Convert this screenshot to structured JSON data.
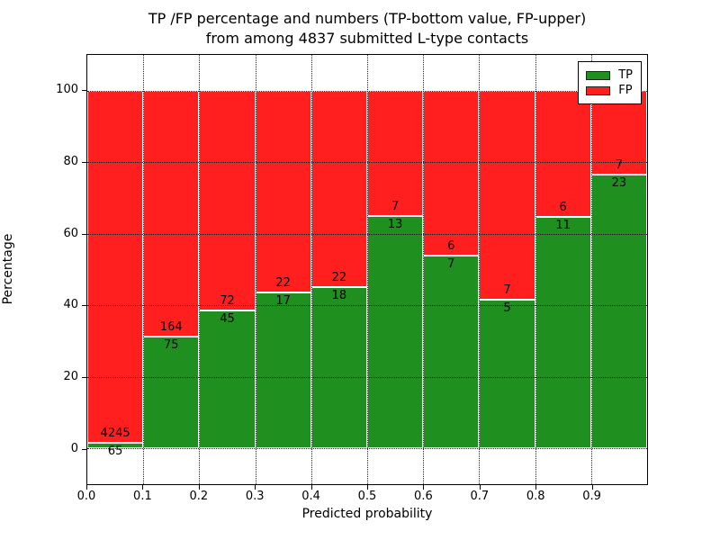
{
  "chart_data": {
    "type": "bar",
    "stacked": true,
    "title_line1": "TP /FP percentage and numbers (TP-bottom value, FP-upper)",
    "title_line2": "from among 4837 submitted L-type contacts",
    "xlabel": "Predicted probability",
    "ylabel": "Percentage",
    "xlim": [
      0.0,
      1.0
    ],
    "ylim": [
      -10,
      110
    ],
    "bin_width": 0.1,
    "x_tick_labels": [
      "0.0",
      "0.1",
      "0.2",
      "0.3",
      "0.4",
      "0.5",
      "0.6",
      "0.7",
      "0.8",
      "0.9"
    ],
    "y_ticks": [
      0,
      20,
      40,
      60,
      80,
      100
    ],
    "grid": true,
    "legend_position": "upper right",
    "series": [
      {
        "name": "TP",
        "color": "#1f8f1f",
        "values": [
          65,
          75,
          45,
          17,
          18,
          13,
          7,
          5,
          11,
          23
        ]
      },
      {
        "name": "FP",
        "color": "#ff1f1f",
        "values": [
          4245,
          164,
          72,
          22,
          22,
          7,
          6,
          7,
          6,
          7
        ]
      }
    ],
    "tp_percent_of_bin": [
      1.5,
      31.4,
      38.5,
      43.6,
      45.0,
      65.0,
      53.8,
      41.7,
      64.7,
      76.7
    ]
  }
}
